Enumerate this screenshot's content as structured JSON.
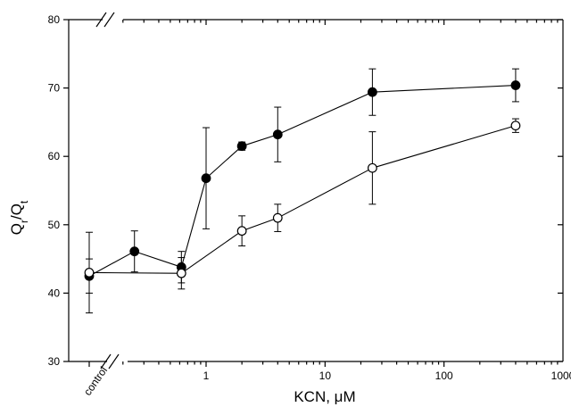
{
  "chart_data": {
    "type": "line",
    "title": "",
    "xlabel": "KCN, μM",
    "ylabel": "Q",
    "ylabel_sub1": "r",
    "ylabel_mid": "/Q",
    "ylabel_sub2": "t",
    "x_scale": "log",
    "xlim": [
      0.1,
      1000
    ],
    "ylim": [
      30,
      80
    ],
    "x_ticks": [
      {
        "value": 1,
        "label": "1"
      },
      {
        "value": 10,
        "label": "10"
      },
      {
        "value": 100,
        "label": "100"
      },
      {
        "value": 1000,
        "label": "1000"
      }
    ],
    "y_ticks": [
      {
        "value": 30,
        "label": "30"
      },
      {
        "value": 40,
        "label": "40"
      },
      {
        "value": 50,
        "label": "50"
      },
      {
        "value": 60,
        "label": "60"
      },
      {
        "value": 70,
        "label": "70"
      },
      {
        "value": 80,
        "label": "80"
      }
    ],
    "control_label": "control",
    "grid": false,
    "legend": "none",
    "axis_break": true,
    "series": [
      {
        "marker": "filled-circle",
        "color": "#000000",
        "points": [
          {
            "x": "control",
            "y": 42.5,
            "err": 2.5
          },
          {
            "x": 0.25,
            "y": 46.1,
            "err": 3.0
          },
          {
            "x": 0.62,
            "y": 43.8,
            "err": 2.3
          },
          {
            "x": 1,
            "y": 56.8,
            "err": 7.4
          },
          {
            "x": 2,
            "y": 61.5,
            "err": 0.6
          },
          {
            "x": 4,
            "y": 63.2,
            "err": 4.0
          },
          {
            "x": 25,
            "y": 69.4,
            "err": 3.4
          },
          {
            "x": 400,
            "y": 70.4,
            "err": 2.4
          }
        ]
      },
      {
        "marker": "open-circle",
        "color": "#000000",
        "points": [
          {
            "x": "control",
            "y": 43.0,
            "err": 5.9
          },
          {
            "x": 0.62,
            "y": 42.9,
            "err": 2.3
          },
          {
            "x": 2,
            "y": 49.1,
            "err": 2.2
          },
          {
            "x": 4,
            "y": 51.0,
            "err": 2.0
          },
          {
            "x": 25,
            "y": 58.3,
            "err": 5.3
          },
          {
            "x": 400,
            "y": 64.5,
            "err": 1.0
          }
        ]
      }
    ]
  }
}
